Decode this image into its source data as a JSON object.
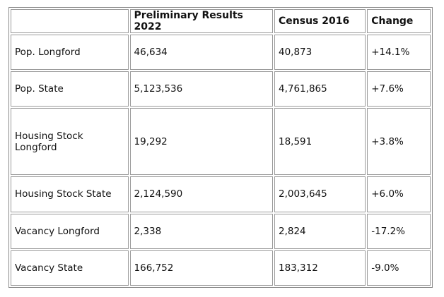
{
  "table": {
    "columns": [
      "Preliminary Results 2022",
      "Census 2016",
      "Change"
    ],
    "rows": [
      [
        "Pop. Longford",
        "46,634",
        "40,873",
        "+14.1%"
      ],
      [
        "Pop. State",
        "5,123,536",
        "4,761,865",
        "+7.6%"
      ],
      [
        "Housing Stock Longford",
        "19,292",
        "18,591",
        "+3.8%"
      ],
      [
        "Housing Stock State",
        "2,124,590",
        "2,003,645",
        "+6.0%"
      ],
      [
        "Vacancy Longford",
        "2,338",
        "2,824",
        "-17.2%"
      ],
      [
        "Vacancy State",
        "166,752",
        "183,312",
        "-9.0%"
      ]
    ]
  }
}
